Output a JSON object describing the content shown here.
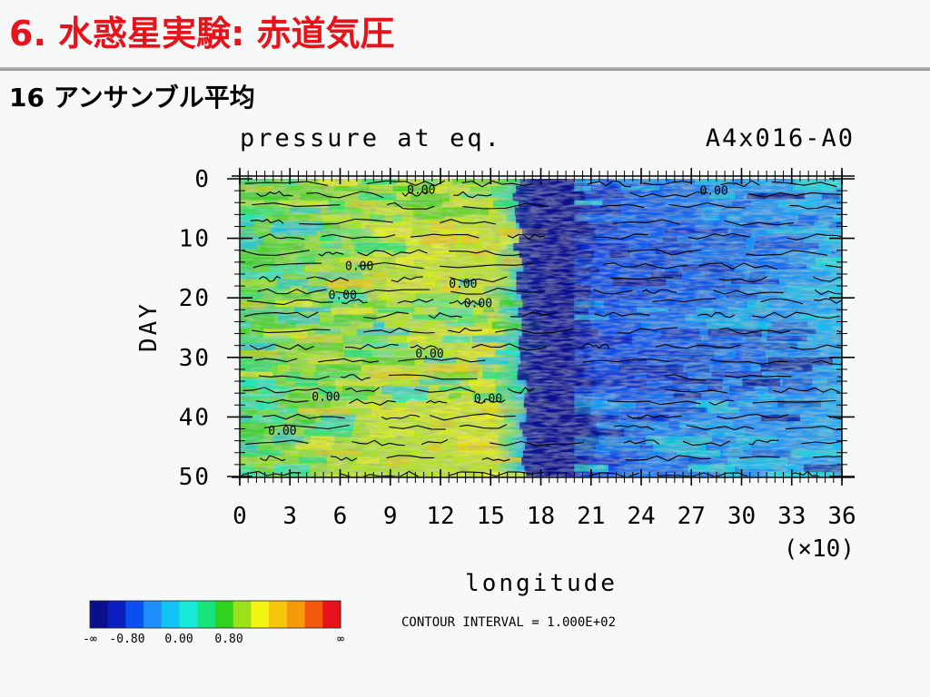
{
  "slide": {
    "title": "6. 水惑星実験: 赤道気圧",
    "subtitle": "16 アンサンブル平均"
  },
  "chart_data": {
    "type": "heatmap",
    "title": "pressure at eq.",
    "case_label": "A4x016-A0",
    "xlabel": "longitude",
    "x_multiplier_label": "(×10)",
    "ylabel": "DAY",
    "xlim": [
      0,
      36
    ],
    "ylim": [
      0,
      50
    ],
    "y_inverted": true,
    "x_ticks": [
      0,
      3,
      6,
      9,
      12,
      15,
      18,
      21,
      24,
      27,
      30,
      33,
      36
    ],
    "x_tick_labels": [
      "0",
      "3",
      "6",
      "9",
      "12",
      "15",
      "18",
      "21",
      "24",
      "27",
      "30",
      "33",
      "36"
    ],
    "y_ticks": [
      0,
      10,
      20,
      30,
      40,
      50
    ],
    "y_tick_labels": [
      "0",
      "10",
      "20",
      "30",
      "40",
      "50"
    ],
    "contour_label": "0.00",
    "contour_label_positions": [
      {
        "x": 10.0,
        "y": 2.5
      },
      {
        "x": 27.5,
        "y": 2.7
      },
      {
        "x": 6.3,
        "y": 15.3
      },
      {
        "x": 12.5,
        "y": 18.3
      },
      {
        "x": 5.3,
        "y": 20.2
      },
      {
        "x": 13.4,
        "y": 21.6
      },
      {
        "x": 10.5,
        "y": 30.0
      },
      {
        "x": 4.3,
        "y": 37.3
      },
      {
        "x": 14.0,
        "y": 37.6
      },
      {
        "x": 1.7,
        "y": 43.0
      }
    ],
    "colorbar": {
      "colors": [
        "#0a0f8c",
        "#0b1fbf",
        "#0a4ff0",
        "#1f8dfa",
        "#11c4f5",
        "#18e8d6",
        "#16e37c",
        "#2fd21f",
        "#9be21a",
        "#f4f414",
        "#f5c60c",
        "#f59a08",
        "#f3580c",
        "#e8121a"
      ],
      "tick_labels": [
        "-∞",
        "-0.80",
        "0.00",
        "0.80",
        "∞"
      ]
    },
    "contour_interval_text": "CONTOUR INTERVAL = 1.000E+02",
    "field_summary": {
      "low_band_lon_x10": [
        16.5,
        20.5
      ],
      "low_region_east_lon_x10": [
        20,
        36
      ],
      "high_region_west_lon_x10": [
        0,
        16
      ]
    }
  }
}
